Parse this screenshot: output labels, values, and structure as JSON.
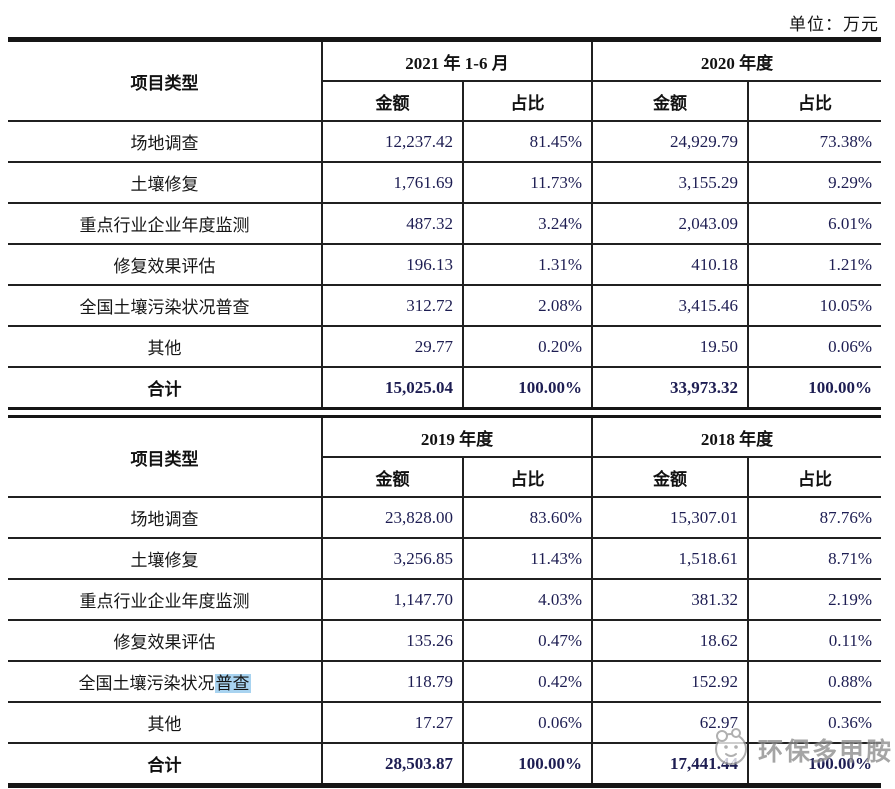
{
  "unit_label": "单位：万元",
  "watermark": {
    "text": "环保多甲胺",
    "logo_icon": "cartoon-mascot-circle-logo"
  },
  "highlight_color": "#a8d3f0",
  "tables": [
    {
      "col_header": "项目类型",
      "periods": [
        "2021 年 1-6 月",
        "2020 年度"
      ],
      "sub_headers": [
        "金额",
        "占比",
        "金额",
        "占比"
      ],
      "rows": [
        {
          "label": "场地调查",
          "values": [
            "12,237.42",
            "81.45%",
            "24,929.79",
            "73.38%"
          ]
        },
        {
          "label": "土壤修复",
          "values": [
            "1,761.69",
            "11.73%",
            "3,155.29",
            "9.29%"
          ]
        },
        {
          "label": "重点行业企业年度监测",
          "values": [
            "487.32",
            "3.24%",
            "2,043.09",
            "6.01%"
          ]
        },
        {
          "label": "修复效果评估",
          "values": [
            "196.13",
            "1.31%",
            "410.18",
            "1.21%"
          ]
        },
        {
          "label": "全国土壤污染状况普查",
          "values": [
            "312.72",
            "2.08%",
            "3,415.46",
            "10.05%"
          ]
        },
        {
          "label": "其他",
          "values": [
            "29.77",
            "0.20%",
            "19.50",
            "0.06%"
          ]
        },
        {
          "label": "合计",
          "total": true,
          "values": [
            "15,025.04",
            "100.00%",
            "33,973.32",
            "100.00%"
          ]
        }
      ]
    },
    {
      "col_header": "项目类型",
      "periods": [
        "2019 年度",
        "2018 年度"
      ],
      "sub_headers": [
        "金额",
        "占比",
        "金额",
        "占比"
      ],
      "rows": [
        {
          "label": "场地调查",
          "values": [
            "23,828.00",
            "83.60%",
            "15,307.01",
            "87.76%"
          ]
        },
        {
          "label": "土壤修复",
          "values": [
            "3,256.85",
            "11.43%",
            "1,518.61",
            "8.71%"
          ]
        },
        {
          "label": "重点行业企业年度监测",
          "values": [
            "1,147.70",
            "4.03%",
            "381.32",
            "2.19%"
          ]
        },
        {
          "label": "修复效果评估",
          "values": [
            "135.26",
            "0.47%",
            "18.62",
            "0.11%"
          ]
        },
        {
          "label_prefix": "全国土壤污染状况",
          "label_highlight": "普查",
          "values": [
            "118.79",
            "0.42%",
            "152.92",
            "0.88%"
          ]
        },
        {
          "label": "其他",
          "values": [
            "17.27",
            "0.06%",
            "62.97",
            "0.36%"
          ]
        },
        {
          "label": "合计",
          "total": true,
          "values": [
            "28,503.87",
            "100.00%",
            "17,441.44",
            "100.00%"
          ]
        }
      ]
    }
  ]
}
